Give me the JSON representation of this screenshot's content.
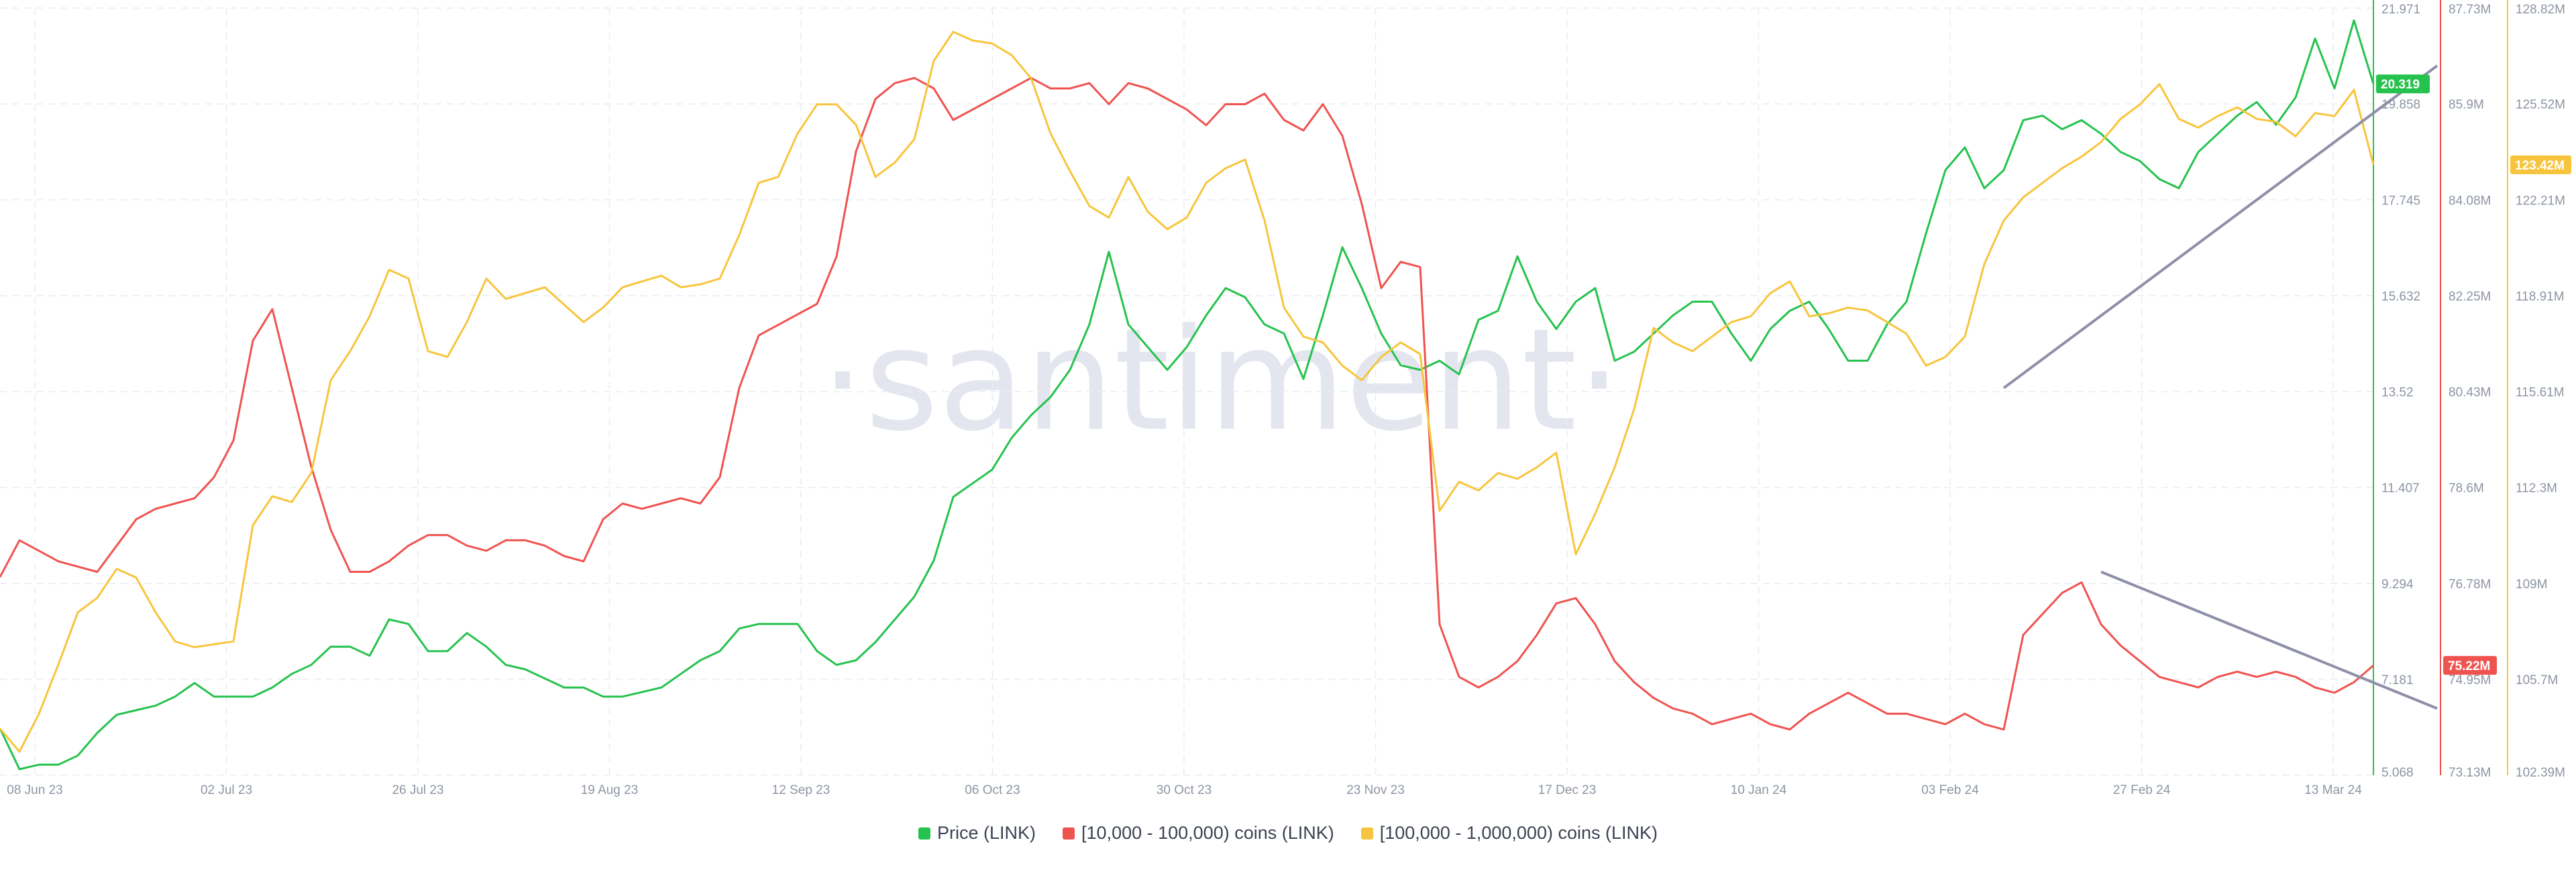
{
  "watermark": "·santiment·",
  "legend": [
    {
      "label": "Price (LINK)",
      "color": "#26c24e"
    },
    {
      "label": "[10,000 - 100,000) coins (LINK)",
      "color": "#ef5350"
    },
    {
      "label": "[100,000  - 1,000,000) coins (LINK)",
      "color": "#f7c53d"
    }
  ],
  "chart_data": {
    "type": "line",
    "title": "",
    "x_ticks": [
      "08 Jun 23",
      "02 Jul 23",
      "26 Jul 23",
      "19 Aug 23",
      "12 Sep 23",
      "06 Oct 23",
      "30 Oct 23",
      "23 Nov 23",
      "17 Dec 23",
      "10 Jan 24",
      "03 Feb 24",
      "27 Feb 24",
      "13 Mar 24"
    ],
    "grid": true,
    "axes": [
      {
        "id": "price",
        "color": "#26c24e",
        "range": [
          5.068,
          21.971
        ],
        "ticks": [
          "21.971",
          "19.858",
          "17.745",
          "15.632",
          "13.52",
          "11.407",
          "9.294",
          "7.181",
          "5.068"
        ]
      },
      {
        "id": "mid",
        "color": "#ef5350",
        "range": [
          73.13,
          87.73
        ],
        "ticks": [
          "87.73M",
          "85.9M",
          "84.08M",
          "82.25M",
          "80.43M",
          "78.6M",
          "76.78M",
          "74.95M",
          "73.13M"
        ]
      },
      {
        "id": "whale",
        "color": "#f7c53d",
        "range": [
          102.39,
          128.82
        ],
        "ticks": [
          "128.82M",
          "125.52M",
          "122.21M",
          "118.91M",
          "115.61M",
          "112.3M",
          "109M",
          "105.7M",
          "102.39M"
        ]
      }
    ],
    "badges": [
      {
        "series": "Price (LINK)",
        "text": "20.319",
        "color": "#26c24e"
      },
      {
        "series": "[10,000 - 100,000) coins (LINK)",
        "text": "75.22M",
        "color": "#ef5350"
      },
      {
        "series": "[100,000  - 1,000,000) coins (LINK)",
        "text": "123.42M",
        "color": "#f7c53d"
      }
    ],
    "series": [
      {
        "name": "Price (LINK)",
        "axis": "price",
        "color": "#26c24e",
        "values": [
          6.1,
          5.2,
          5.3,
          5.3,
          5.5,
          6.0,
          6.4,
          6.5,
          6.6,
          6.8,
          7.1,
          6.8,
          6.8,
          6.8,
          7.0,
          7.3,
          7.5,
          7.9,
          7.9,
          7.7,
          8.5,
          8.4,
          7.8,
          7.8,
          8.2,
          7.9,
          7.5,
          7.4,
          7.2,
          7.0,
          7.0,
          6.8,
          6.8,
          6.9,
          7.0,
          7.3,
          7.6,
          7.8,
          8.3,
          8.4,
          8.4,
          8.4,
          7.8,
          7.5,
          7.6,
          8.0,
          8.5,
          9.0,
          9.8,
          11.2,
          11.5,
          11.8,
          12.5,
          13.0,
          13.4,
          14.0,
          15.0,
          16.6,
          15.0,
          14.5,
          14.0,
          14.5,
          15.2,
          15.8,
          15.6,
          15.0,
          14.8,
          13.8,
          15.2,
          16.7,
          15.8,
          14.8,
          14.1,
          14.0,
          14.2,
          13.9,
          15.1,
          15.3,
          16.5,
          15.5,
          14.9,
          15.5,
          15.8,
          14.2,
          14.4,
          14.8,
          15.2,
          15.5,
          15.5,
          14.8,
          14.2,
          14.9,
          15.3,
          15.5,
          14.9,
          14.2,
          14.2,
          15.0,
          15.5,
          17.0,
          18.4,
          18.9,
          18.0,
          18.4,
          19.5,
          19.6,
          19.3,
          19.5,
          19.2,
          18.8,
          18.6,
          18.2,
          18.0,
          18.8,
          19.2,
          19.6,
          19.9,
          19.4,
          20.0,
          21.3,
          20.2,
          21.7,
          20.3
        ]
      },
      {
        "name": "[10,000 - 100,000) coins (LINK)",
        "axis": "mid",
        "color": "#ef5350",
        "values": [
          76.9,
          77.6,
          77.4,
          77.2,
          77.1,
          77.0,
          77.5,
          78.0,
          78.2,
          78.3,
          78.4,
          78.8,
          79.5,
          81.4,
          82.0,
          80.5,
          79.0,
          77.8,
          77.0,
          77.0,
          77.2,
          77.5,
          77.7,
          77.7,
          77.5,
          77.4,
          77.6,
          77.6,
          77.5,
          77.3,
          77.2,
          78.0,
          78.3,
          78.2,
          78.3,
          78.4,
          78.3,
          78.8,
          80.5,
          81.5,
          81.7,
          81.9,
          82.1,
          83.0,
          85.0,
          86.0,
          86.3,
          86.4,
          86.2,
          85.6,
          85.8,
          86.0,
          86.2,
          86.4,
          86.2,
          86.2,
          86.3,
          85.9,
          86.3,
          86.2,
          86.0,
          85.8,
          85.5,
          85.9,
          85.9,
          86.1,
          85.6,
          85.4,
          85.9,
          85.3,
          84.0,
          82.4,
          82.9,
          82.8,
          76.0,
          75.0,
          74.8,
          75.0,
          75.3,
          75.8,
          76.4,
          76.5,
          76.0,
          75.3,
          74.9,
          74.6,
          74.4,
          74.3,
          74.1,
          74.2,
          74.3,
          74.1,
          74.0,
          74.3,
          74.5,
          74.7,
          74.5,
          74.3,
          74.3,
          74.2,
          74.1,
          74.3,
          74.1,
          74.0,
          75.8,
          76.2,
          76.6,
          76.8,
          76.0,
          75.6,
          75.3,
          75.0,
          74.9,
          74.8,
          75.0,
          75.1,
          75.0,
          75.1,
          75.0,
          74.8,
          74.7,
          74.9,
          75.22
        ]
      },
      {
        "name": "[100,000  - 1,000,000) coins (LINK)",
        "axis": "whale",
        "color": "#f7c53d",
        "values": [
          104.0,
          103.2,
          104.5,
          106.2,
          108.0,
          108.5,
          109.5,
          109.2,
          108.0,
          107.0,
          106.8,
          106.9,
          107.0,
          111.0,
          112.0,
          111.8,
          112.8,
          116.0,
          117.0,
          118.2,
          119.8,
          119.5,
          117.0,
          116.8,
          118.0,
          119.5,
          118.8,
          119.0,
          119.2,
          118.6,
          118.0,
          118.5,
          119.2,
          119.4,
          119.6,
          119.2,
          119.3,
          119.5,
          121.0,
          122.8,
          123.0,
          124.5,
          125.5,
          125.5,
          124.8,
          123.0,
          123.5,
          124.3,
          127.0,
          128.0,
          127.7,
          127.6,
          127.2,
          126.4,
          124.5,
          123.2,
          122.0,
          121.6,
          123.0,
          121.8,
          121.2,
          121.6,
          122.8,
          123.3,
          123.6,
          121.5,
          118.5,
          117.5,
          117.3,
          116.5,
          116.0,
          116.8,
          117.3,
          116.9,
          111.5,
          112.5,
          112.2,
          112.8,
          112.6,
          113.0,
          113.5,
          110.0,
          111.4,
          113.0,
          115.0,
          117.8,
          117.3,
          117.0,
          117.5,
          118.0,
          118.2,
          119.0,
          119.4,
          118.2,
          118.3,
          118.5,
          118.4,
          118.0,
          117.6,
          116.5,
          116.8,
          117.5,
          120.0,
          121.5,
          122.3,
          122.8,
          123.3,
          123.7,
          124.2,
          125.0,
          125.5,
          126.2,
          125.0,
          124.7,
          125.1,
          125.4,
          125.0,
          124.9,
          124.4,
          125.2,
          125.1,
          126.0,
          123.42
        ]
      }
    ],
    "trendlines": [
      {
        "axis": "price",
        "from": {
          "x_index": 103,
          "value": 13.6
        },
        "to": {
          "x_index": 125,
          "value": 20.7
        }
      },
      {
        "axis": "mid",
        "from": {
          "x_index": 108,
          "value": 77.0
        },
        "to": {
          "x_index": 125,
          "value": 74.4
        }
      }
    ]
  }
}
